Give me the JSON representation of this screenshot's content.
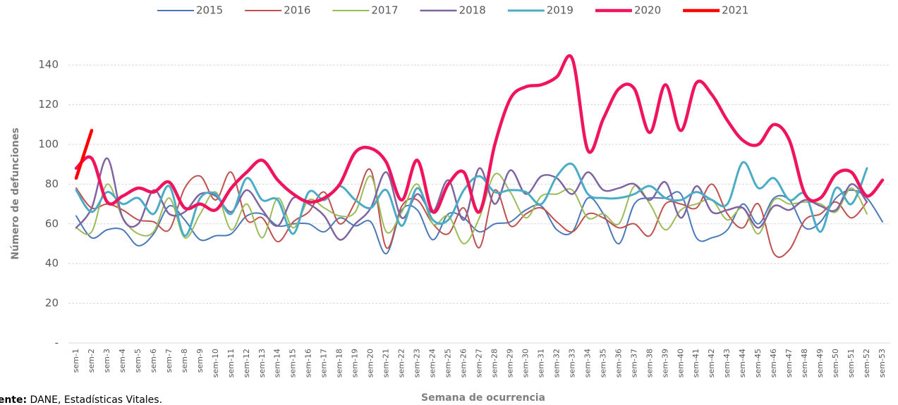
{
  "chart_data": {
    "type": "line",
    "y_label": "Número de defunciones",
    "x_label": "Semana de ocurrencia",
    "source_label": "Fuente:",
    "source_text": "DANE, Estadísticas Vitales.",
    "categories": [
      "sem-1",
      "sem-2",
      "sem-3",
      "sem-4",
      "sem-5",
      "sem-6",
      "sem-7",
      "sem-8",
      "sem-9",
      "sem-10",
      "sem-11",
      "sem-12",
      "sem-13",
      "sem-14",
      "sem-15",
      "sem-16",
      "sem-17",
      "sem-18",
      "sem-19",
      "sem-20",
      "sem-21",
      "sem-22",
      "sem-23",
      "sem-24",
      "sem-25",
      "sem-26",
      "sem-27",
      "sem-28",
      "sem-29",
      "sem-30",
      "sem-31",
      "sem-32",
      "sem-33",
      "sem-34",
      "sem-35",
      "sem-36",
      "sem-37",
      "sem-38",
      "sem-39",
      "sem-40",
      "sem-41",
      "sem-42",
      "sem-43",
      "sem-44",
      "sem-45",
      "sem-46",
      "sem-47",
      "sem-48",
      "sem-49",
      "sem-50",
      "sem-51",
      "sem-52",
      "sem-53"
    ],
    "series": [
      {
        "name": "2015",
        "color": "#4a78b8",
        "values": [
          64,
          53,
          57,
          57,
          49,
          55,
          69,
          62,
          52,
          54,
          55,
          64,
          65,
          59,
          60,
          60,
          56,
          63,
          59,
          61,
          45,
          67,
          67,
          52,
          65,
          63,
          56,
          60,
          61,
          67,
          69,
          57,
          56,
          73,
          65,
          50,
          70,
          73,
          73,
          75,
          53,
          53,
          57,
          70,
          60,
          73,
          72,
          58,
          61,
          73,
          77,
          73,
          61
        ]
      },
      {
        "name": "2016",
        "color": "#c0504d",
        "values": [
          78,
          68,
          70,
          67,
          62,
          61,
          57,
          78,
          84,
          72,
          86,
          62,
          63,
          51,
          61,
          66,
          76,
          60,
          71,
          87,
          48,
          69,
          72,
          60,
          55,
          68,
          48,
          77,
          59,
          65,
          68,
          61,
          56,
          65,
          63,
          58,
          60,
          54,
          70,
          70,
          68,
          80,
          65,
          58,
          70,
          45,
          47,
          62,
          65,
          71,
          63,
          71,
          null
        ]
      },
      {
        "name": "2017",
        "color": "#9bbb59",
        "values": [
          58,
          56,
          80,
          63,
          55,
          56,
          73,
          53,
          65,
          76,
          57,
          70,
          53,
          73,
          58,
          72,
          68,
          64,
          66,
          84,
          56,
          66,
          80,
          60,
          64,
          50,
          63,
          85,
          76,
          63,
          74,
          75,
          77,
          63,
          65,
          60,
          79,
          70,
          57,
          67,
          70,
          72,
          62,
          68,
          55,
          72,
          70,
          71,
          70,
          66,
          78,
          65,
          null
        ]
      },
      {
        "name": "2018",
        "color": "#8064a2",
        "values": [
          58,
          68,
          93,
          63,
          60,
          77,
          65,
          66,
          75,
          74,
          66,
          77,
          67,
          59,
          73,
          70,
          64,
          52,
          60,
          68,
          86,
          63,
          75,
          66,
          82,
          62,
          88,
          70,
          87,
          75,
          84,
          83,
          75,
          86,
          77,
          78,
          80,
          72,
          81,
          63,
          79,
          66,
          67,
          68,
          58,
          69,
          67,
          72,
          69,
          67,
          80,
          71,
          null
        ]
      },
      {
        "name": "2019",
        "color": "#4bacc6",
        "values": [
          77,
          66,
          76,
          70,
          73,
          65,
          79,
          54,
          73,
          75,
          65,
          83,
          72,
          72,
          55,
          76,
          72,
          79,
          72,
          68,
          77,
          59,
          78,
          62,
          62,
          77,
          84,
          76,
          77,
          76,
          70,
          84,
          90,
          75,
          73,
          73,
          75,
          79,
          73,
          72,
          76,
          72,
          70,
          91,
          78,
          83,
          72,
          75,
          56,
          78,
          70,
          88,
          null
        ]
      },
      {
        "name": "2020",
        "color": "#f0145f",
        "values": [
          88,
          93,
          71,
          74,
          78,
          76,
          81,
          68,
          70,
          67,
          78,
          86,
          92,
          82,
          75,
          71,
          73,
          80,
          96,
          98,
          91,
          72,
          92,
          66,
          80,
          86,
          66,
          100,
          123,
          129,
          130,
          134,
          143,
          97,
          113,
          128,
          128,
          106,
          130,
          107,
          131,
          125,
          112,
          102,
          100,
          110,
          102,
          75,
          73,
          85,
          86,
          74,
          82
        ]
      },
      {
        "name": "2021",
        "color": "#ff0000",
        "values": [
          83,
          107,
          null,
          null,
          null,
          null,
          null,
          null,
          null,
          null,
          null,
          null,
          null,
          null,
          null,
          null,
          null,
          null,
          null,
          null,
          null,
          null,
          null,
          null,
          null,
          null,
          null,
          null,
          null,
          null,
          null,
          null,
          null,
          null,
          null,
          null,
          null,
          null,
          null,
          null,
          null,
          null,
          null,
          null,
          null,
          null,
          null,
          null,
          null,
          null,
          null,
          null,
          null
        ]
      }
    ],
    "ylim": [
      0,
      150
    ],
    "yticks": [
      {
        "value": 0,
        "label": "-"
      },
      20,
      40,
      60,
      80,
      100,
      120,
      140
    ],
    "grid": true,
    "legend": "top"
  }
}
